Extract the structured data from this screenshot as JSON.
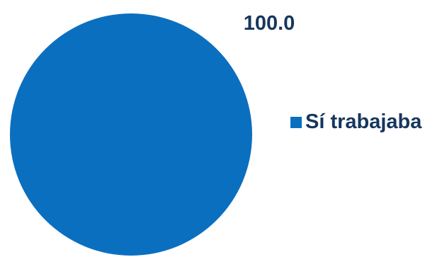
{
  "chart_data": {
    "type": "pie",
    "categories": [
      "Sí trabajaba"
    ],
    "values": [
      100.0
    ],
    "data_labels": [
      "100.0"
    ],
    "colors": [
      "#0B6FC0"
    ],
    "legend_placement": "right",
    "title": ""
  }
}
